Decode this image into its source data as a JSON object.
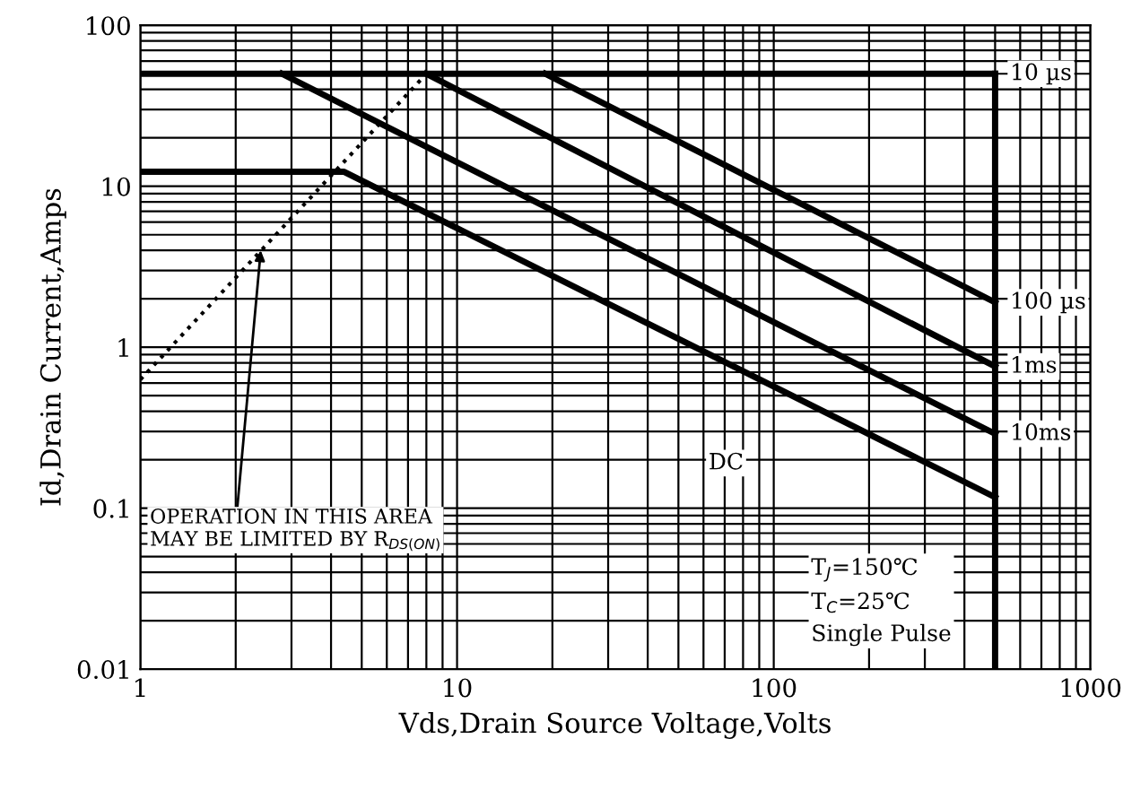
{
  "chart_data": {
    "type": "line",
    "xlabel": "Vds,Drain Source Voltage,Volts",
    "ylabel": "Id,Drain Current,Amps",
    "log": "xy",
    "grid": true,
    "legend": false,
    "marker": "none",
    "line_style": "solid",
    "xlim": [
      1,
      1000
    ],
    "xticks": [
      1,
      10,
      100,
      1000
    ],
    "ylim": [
      0.01,
      100
    ],
    "yticks": [
      0.01,
      0.1,
      1,
      10,
      100
    ],
    "series": [
      {
        "name": "10 µs",
        "color": "#000000",
        "x": [
          1,
          500
        ],
        "values": [
          50,
          50
        ]
      },
      {
        "name": "100 µs",
        "color": "#000000",
        "x": [
          19,
          500
        ],
        "values": [
          50,
          1.9
        ]
      },
      {
        "name": "1ms",
        "color": "#000000",
        "x": [
          8,
          500
        ],
        "values": [
          50,
          0.76
        ]
      },
      {
        "name": "10ms",
        "color": "#000000",
        "x": [
          2.8,
          500
        ],
        "values": [
          50,
          0.29
        ]
      },
      {
        "color": "#000000",
        "x": [
          1,
          4.4,
          500
        ],
        "values": [
          12.3,
          12.3,
          0.117
        ]
      },
      {
        "color": "#000000",
        "x": [
          500,
          500
        ],
        "values": [
          50,
          0.01
        ]
      },
      {
        "color": "#000000",
        "line_style": "dotted",
        "x": [
          1,
          8
        ],
        "values": [
          0.63,
          50
        ]
      }
    ],
    "annotations": [
      "DC",
      "T$_{J}$=150℃\nT$_{C}$=25℃\nSingle Pulse",
      {
        "text": "OPERATION IN THIS AREA\nMAY BE LIMITED BY R$_{DS(ON)}$",
        "x": 2.4,
        "y": 4
      }
    ]
  }
}
